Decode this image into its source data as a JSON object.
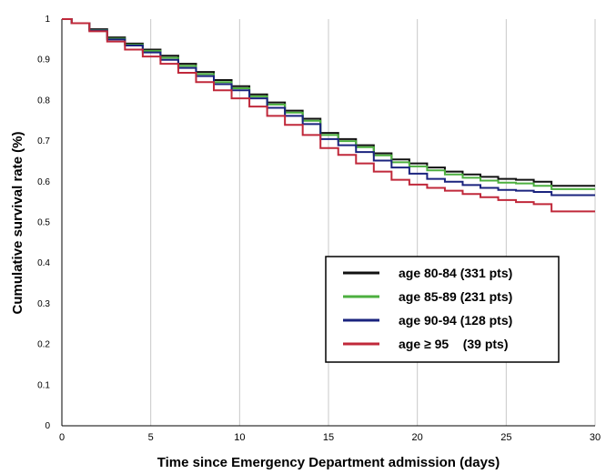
{
  "chart_data": {
    "type": "line",
    "xlabel": "Time since Emergency Department admission (days)",
    "ylabel": "Cumulative survival rate (%)",
    "xlim": [
      0,
      30
    ],
    "ylim": [
      0,
      1
    ],
    "x_ticks": [
      "0",
      "5",
      "10",
      "15",
      "20",
      "25",
      "30"
    ],
    "y_ticks": [
      "0",
      "0.1",
      "0.2",
      "0.3",
      "0.4",
      "0.5",
      "0.6",
      "0.7",
      "0.8",
      "0.9",
      "1"
    ],
    "grid": "vertical",
    "legend_position": "bottom-right",
    "x": [
      0,
      1,
      2,
      3,
      4,
      5,
      6,
      7,
      8,
      9,
      10,
      11,
      12,
      13,
      14,
      15,
      16,
      17,
      18,
      19,
      20,
      21,
      22,
      23,
      24,
      25,
      26,
      27,
      28,
      29,
      30
    ],
    "series": [
      {
        "name": "age 80-84 (331 pts)",
        "color": "#111111",
        "values": [
          1.0,
          0.99,
          0.975,
          0.955,
          0.94,
          0.925,
          0.91,
          0.89,
          0.87,
          0.85,
          0.835,
          0.815,
          0.795,
          0.775,
          0.755,
          0.72,
          0.705,
          0.69,
          0.67,
          0.655,
          0.645,
          0.635,
          0.625,
          0.618,
          0.612,
          0.607,
          0.605,
          0.6,
          0.59,
          0.59,
          0.59
        ]
      },
      {
        "name": "age 85-89 (231 pts)",
        "color": "#4caf3f",
        "values": [
          1.0,
          0.99,
          0.973,
          0.952,
          0.937,
          0.922,
          0.905,
          0.885,
          0.865,
          0.845,
          0.83,
          0.81,
          0.79,
          0.77,
          0.75,
          0.715,
          0.7,
          0.685,
          0.665,
          0.648,
          0.638,
          0.628,
          0.618,
          0.61,
          0.603,
          0.598,
          0.596,
          0.59,
          0.582,
          0.582,
          0.582
        ]
      },
      {
        "name": "age 90-94 (128 pts)",
        "color": "#1a237e",
        "values": [
          1.0,
          0.99,
          0.972,
          0.95,
          0.935,
          0.918,
          0.9,
          0.88,
          0.86,
          0.84,
          0.825,
          0.805,
          0.782,
          0.762,
          0.742,
          0.705,
          0.69,
          0.673,
          0.652,
          0.635,
          0.62,
          0.607,
          0.6,
          0.592,
          0.585,
          0.58,
          0.578,
          0.575,
          0.567,
          0.567,
          0.567
        ]
      },
      {
        "name": "age ≥ 95    (39 pts)",
        "color": "#c0283a",
        "values": [
          1.0,
          0.99,
          0.97,
          0.945,
          0.925,
          0.908,
          0.89,
          0.868,
          0.845,
          0.825,
          0.805,
          0.785,
          0.762,
          0.74,
          0.715,
          0.683,
          0.666,
          0.645,
          0.625,
          0.605,
          0.593,
          0.585,
          0.578,
          0.57,
          0.562,
          0.555,
          0.55,
          0.545,
          0.527,
          0.527,
          0.527
        ]
      }
    ]
  }
}
